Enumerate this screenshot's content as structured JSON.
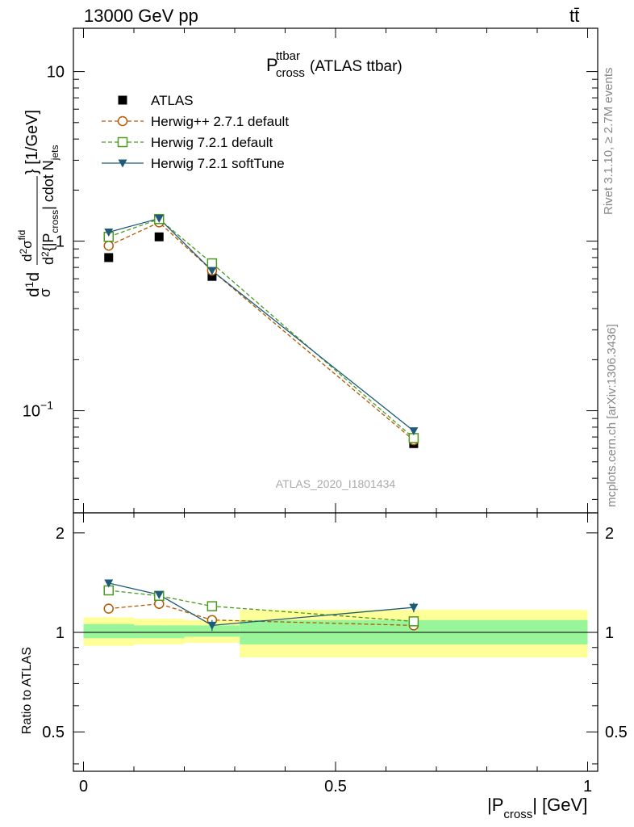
{
  "header": {
    "left": "13000 GeV pp",
    "right": "tt̄"
  },
  "plot_title": {
    "main": "P",
    "sup": "ttbar",
    "sub": "cross",
    "suffix": "(ATLAS ttbar)"
  },
  "watermark": "ATLAS_2020_I1801434",
  "side_labels": {
    "rivet": "Rivet 3.1.10, ≥ 2.7M events",
    "mcplots": "mcplots.cern.ch [arXiv:1306.3436]"
  },
  "colors": {
    "data": "#000000",
    "herwigpp": "#b35900",
    "herwig721": "#4c9a1e",
    "softtune": "#1f5a78",
    "band_outer": "#ffff99",
    "band_inner": "#99f599"
  },
  "chart_data": [
    {
      "type": "line",
      "panel": "main",
      "ylabel": "d 1/σ dσ^{fid}/d²{|P_cross| cdot N_jets} [1/GeV]",
      "yscale": "log",
      "ylim": [
        0.025,
        18
      ],
      "xlim": [
        -0.02,
        1.02
      ],
      "y_ticks": [
        {
          "value": 0.1,
          "label": "10",
          "exp": "−1"
        },
        {
          "value": 1,
          "label": "1",
          "exp": ""
        },
        {
          "value": 10,
          "label": "10",
          "exp": ""
        }
      ],
      "x": [
        0.05,
        0.15,
        0.255,
        0.655
      ],
      "series": [
        {
          "name": "ATLAS",
          "key": "data",
          "marker": "square-filled",
          "style": "none",
          "values": [
            0.8,
            1.06,
            0.62,
            0.064
          ]
        },
        {
          "name": "Herwig++ 2.7.1 default",
          "key": "herwigpp",
          "marker": "circle-open",
          "style": "dashed",
          "values": [
            0.94,
            1.29,
            0.67,
            0.067
          ]
        },
        {
          "name": "Herwig 7.2.1 default",
          "key": "herwig721",
          "marker": "square-open",
          "style": "dashed",
          "values": [
            1.06,
            1.35,
            0.74,
            0.069
          ]
        },
        {
          "name": "Herwig 7.2.1 softTune",
          "key": "softtune",
          "marker": "triangle-down",
          "style": "solid",
          "values": [
            1.13,
            1.36,
            0.67,
            0.076
          ]
        }
      ]
    },
    {
      "type": "line",
      "panel": "ratio",
      "ylabel": "Ratio to ATLAS",
      "xlabel": "|P_cross| [GeV]",
      "ylim": [
        0.38,
        2.3
      ],
      "xlim": [
        -0.02,
        1.02
      ],
      "y_ticks": [
        {
          "value": 0.5,
          "label": "0.5"
        },
        {
          "value": 1,
          "label": "1"
        },
        {
          "value": 2,
          "label": "2"
        }
      ],
      "x_ticks": [
        {
          "value": 0,
          "label": "0"
        },
        {
          "value": 0.5,
          "label": "0.5"
        },
        {
          "value": 1,
          "label": "1"
        }
      ],
      "bands": [
        {
          "x0": 0.0,
          "x1": 0.1,
          "outer": [
            0.91,
            1.11
          ],
          "inner": [
            0.96,
            1.06
          ]
        },
        {
          "x0": 0.1,
          "x1": 0.2,
          "outer": [
            0.92,
            1.1
          ],
          "inner": [
            0.96,
            1.05
          ]
        },
        {
          "x0": 0.2,
          "x1": 0.31,
          "outer": [
            0.93,
            1.09
          ],
          "inner": [
            0.97,
            1.05
          ]
        },
        {
          "x0": 0.31,
          "x1": 1.0,
          "outer": [
            0.84,
            1.17
          ],
          "inner": [
            0.92,
            1.09
          ]
        }
      ],
      "x": [
        0.05,
        0.15,
        0.255,
        0.655
      ],
      "series": [
        {
          "name": "Herwig++ 2.7.1 default",
          "key": "herwigpp",
          "marker": "circle-open",
          "style": "dashed",
          "values": [
            1.18,
            1.22,
            1.09,
            1.05
          ],
          "errors": [
            0.03,
            0.03,
            0.03,
            0.03
          ]
        },
        {
          "name": "Herwig 7.2.1 default",
          "key": "herwig721",
          "marker": "square-open",
          "style": "dashed",
          "values": [
            1.34,
            1.29,
            1.2,
            1.08
          ],
          "errors": [
            0.03,
            0.03,
            0.03,
            0.03
          ]
        },
        {
          "name": "Herwig 7.2.1 softTune",
          "key": "softtune",
          "marker": "triangle-down",
          "style": "solid",
          "values": [
            1.41,
            1.3,
            1.05,
            1.19
          ],
          "errors": [
            0.03,
            0.03,
            0.04,
            0.04
          ]
        }
      ]
    }
  ]
}
